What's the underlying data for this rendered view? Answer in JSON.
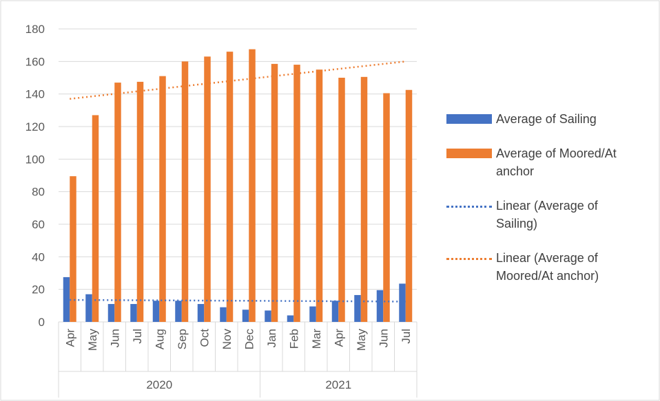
{
  "chart_data": {
    "type": "bar",
    "categories": [
      "Apr",
      "May",
      "Jun",
      "Jul",
      "Aug",
      "Sep",
      "Oct",
      "Nov",
      "Dec",
      "Jan",
      "Feb",
      "Mar",
      "Apr",
      "May",
      "Jun",
      "Jul"
    ],
    "x_groups": [
      {
        "label": "2020",
        "span": 9
      },
      {
        "label": "2021",
        "span": 7
      }
    ],
    "series": [
      {
        "name": "Average of Sailing",
        "color": "#4472c4",
        "values": [
          27.5,
          17,
          11,
          11,
          13,
          13,
          11,
          9,
          7.5,
          7,
          4,
          9.5,
          13,
          16.5,
          19.5,
          23.5
        ]
      },
      {
        "name": "Average of Moored/At anchor",
        "color": "#ed7d31",
        "values": [
          89.5,
          127,
          147,
          147.5,
          151,
          160,
          163,
          166,
          167.5,
          158.5,
          158,
          155,
          150,
          150.5,
          140.5,
          142.5
        ]
      }
    ],
    "trendlines": [
      {
        "name": "Linear (Average of Sailing)",
        "color": "#4472c4",
        "values": [
          13.5,
          12.5
        ]
      },
      {
        "name": "Linear (Average of Moored/At anchor)",
        "color": "#ed7d31",
        "values": [
          137,
          160
        ]
      }
    ],
    "ylim": [
      0,
      180
    ],
    "yticks": [
      0,
      20,
      40,
      60,
      80,
      100,
      120,
      140,
      160,
      180
    ],
    "grid": true
  }
}
